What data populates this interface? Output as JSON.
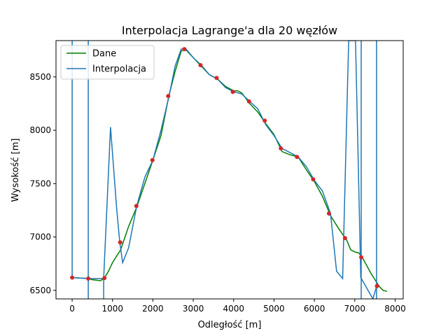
{
  "chart_data": {
    "type": "line",
    "title": "Interpolacja Lagrange'a dla 20 węzłów",
    "xlabel": "Odległość [m]",
    "ylabel": "Wysokość [m]",
    "xlim": [
      -400,
      8200
    ],
    "ylim": [
      6420,
      8840
    ],
    "xticks": [
      0,
      1000,
      2000,
      3000,
      4000,
      5000,
      6000,
      7000,
      8000
    ],
    "yticks": [
      6500,
      7000,
      7500,
      8000,
      8500
    ],
    "grid": false,
    "legend_position": "top-left",
    "colors": {
      "data": "#008000",
      "interp": "#1f77b4",
      "nodes": "#d62728"
    },
    "series": [
      {
        "name": "Dane",
        "x": [
          0,
          200,
          400,
          500,
          600,
          700,
          800,
          900,
          1000,
          1200,
          1400,
          1600,
          1800,
          2000,
          2200,
          2400,
          2550,
          2700,
          2800,
          2900,
          3000,
          3200,
          3400,
          3600,
          3800,
          4000,
          4100,
          4200,
          4400,
          4600,
          4800,
          5000,
          5200,
          5400,
          5600,
          5800,
          6000,
          6200,
          6400,
          6600,
          6800,
          6900,
          7000,
          7100,
          7200,
          7400,
          7600,
          7700,
          7800
        ],
        "y": [
          6620,
          6615,
          6612,
          6600,
          6595,
          6590,
          6615,
          6680,
          6760,
          6880,
          7100,
          7280,
          7500,
          7720,
          7950,
          8330,
          8550,
          8740,
          8760,
          8720,
          8680,
          8600,
          8520,
          8480,
          8410,
          8370,
          8370,
          8350,
          8250,
          8170,
          8060,
          7960,
          7800,
          7770,
          7750,
          7630,
          7520,
          7380,
          7200,
          7080,
          6970,
          6880,
          6860,
          6850,
          6800,
          6660,
          6540,
          6500,
          6490
        ]
      },
      {
        "name": "Interpolacja",
        "x": [
          0,
          400,
          780,
          950,
          1100,
          1180,
          1250,
          1400,
          1600,
          1800,
          2000,
          2200,
          2400,
          2550,
          2700,
          2800,
          3000,
          3200,
          3400,
          3600,
          3800,
          4000,
          4200,
          4400,
          4600,
          4800,
          5000,
          5200,
          5400,
          5600,
          5800,
          6000,
          6200,
          6400,
          6550,
          6700,
          6850,
          7020,
          7150,
          7450,
          7550
        ],
        "y": [
          6620,
          6610,
          6610,
          8030,
          7280,
          6950,
          6760,
          6900,
          7290,
          7560,
          7720,
          8000,
          8320,
          8600,
          8760,
          8770,
          8680,
          8610,
          8520,
          8480,
          8400,
          8360,
          8340,
          8270,
          8200,
          8050,
          7950,
          7830,
          7790,
          7750,
          7660,
          7530,
          7430,
          7220,
          6680,
          6610,
          8840,
          8840,
          6620,
          6420,
          6550
        ],
        "spikes": [
          {
            "x": [
              0,
              0
            ],
            "y": [
              6620,
              8840
            ]
          },
          {
            "x": [
              400,
              400
            ],
            "y": [
              8840,
              6420
            ]
          },
          {
            "x": [
              780,
              780
            ],
            "y": [
              6420,
              6610
            ]
          },
          {
            "x": [
              7160,
              7160
            ],
            "y": [
              8840,
              6420
            ]
          },
          {
            "x": [
              7540,
              7540
            ],
            "y": [
              6420,
              8840
            ]
          }
        ]
      }
    ],
    "nodes": {
      "x": [
        0,
        400,
        800,
        1190,
        1590,
        1990,
        2380,
        2780,
        3180,
        3580,
        3980,
        4380,
        4770,
        5170,
        5570,
        5970,
        6360,
        6760,
        7160,
        7550
      ],
      "y": [
        6620,
        6610,
        6615,
        6950,
        7290,
        7720,
        8320,
        8760,
        8610,
        8490,
        8360,
        8270,
        8090,
        7830,
        7750,
        7540,
        7220,
        6990,
        6810,
        6540
      ]
    }
  }
}
